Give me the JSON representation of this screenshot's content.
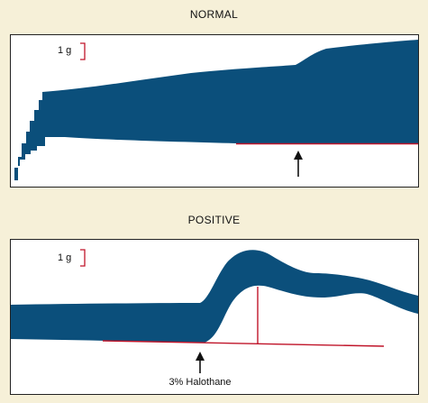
{
  "normal": {
    "title": "NORMAL",
    "scale_label": "1 g"
  },
  "positive": {
    "title": "POSITIVE",
    "scale_label": "1 g",
    "arrow_label": "3% Halothane"
  },
  "colors": {
    "background": "#f6f0d8",
    "trace": "#0b4f7b",
    "baseline": "#c0152a",
    "scale_bar": "#c0152a",
    "arrow": "#111111"
  }
}
